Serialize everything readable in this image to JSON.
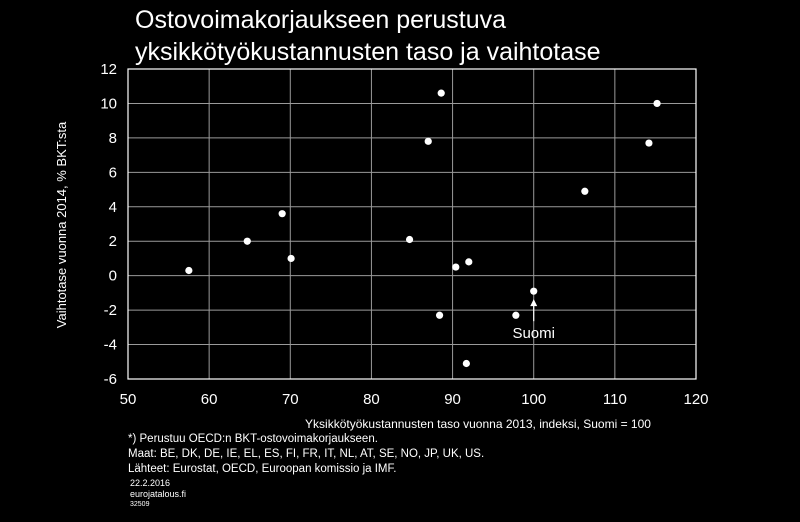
{
  "title_lines": [
    "Ostovoimakorjaukseen perustuva",
    "yksikkötyökustannusten taso ja vaihtotase"
  ],
  "notes": [
    "*) Perustuu  OECD:n BKT-ostovoimakorjaukseen.",
    "Maat: BE, DK, DE, IE, EL, ES, FI, FR, IT, NL, AT, SE, NO, JP, UK, US.",
    "Lähteet: Eurostat, OECD, Euroopan komissio ja IMF."
  ],
  "footer": {
    "date": "22.2.2016",
    "site": "eurojatalous.fi",
    "code": "32509"
  },
  "colors": {
    "background": "#000000",
    "foreground": "#ffffff",
    "grid": "#9a9a9a"
  },
  "chart_data": {
    "type": "scatter",
    "title": "",
    "xlabel": "Yksikkötyökustannusten taso vuonna 2013, indeksi, Suomi = 100",
    "ylabel": "Vaihtotase vuonna 2014, % BKT:sta",
    "xlim": [
      50,
      120
    ],
    "ylim": [
      -6,
      12
    ],
    "xticks": [
      "50",
      "60",
      "70",
      "80",
      "90",
      "100",
      "110",
      "120"
    ],
    "yticks": [
      "12",
      "10",
      "8",
      "6",
      "4",
      "2",
      "0",
      "-2",
      "-4",
      "-6"
    ],
    "grid": true,
    "points": [
      {
        "x": 57.5,
        "y": 0.3
      },
      {
        "x": 64.7,
        "y": 2.0
      },
      {
        "x": 69.0,
        "y": 3.6
      },
      {
        "x": 70.1,
        "y": 1.0
      },
      {
        "x": 84.7,
        "y": 2.1
      },
      {
        "x": 87.0,
        "y": 7.8
      },
      {
        "x": 88.4,
        "y": -2.3
      },
      {
        "x": 88.6,
        "y": 10.6
      },
      {
        "x": 90.4,
        "y": 0.5
      },
      {
        "x": 91.7,
        "y": -5.1
      },
      {
        "x": 92.0,
        "y": 0.8
      },
      {
        "x": 97.8,
        "y": -2.3
      },
      {
        "x": 100.0,
        "y": -0.9
      },
      {
        "x": 106.3,
        "y": 4.9
      },
      {
        "x": 114.2,
        "y": 7.7
      },
      {
        "x": 115.2,
        "y": 10.0
      }
    ],
    "annotation": {
      "label": "Suomi",
      "x": 100.0,
      "y": -0.9
    }
  }
}
